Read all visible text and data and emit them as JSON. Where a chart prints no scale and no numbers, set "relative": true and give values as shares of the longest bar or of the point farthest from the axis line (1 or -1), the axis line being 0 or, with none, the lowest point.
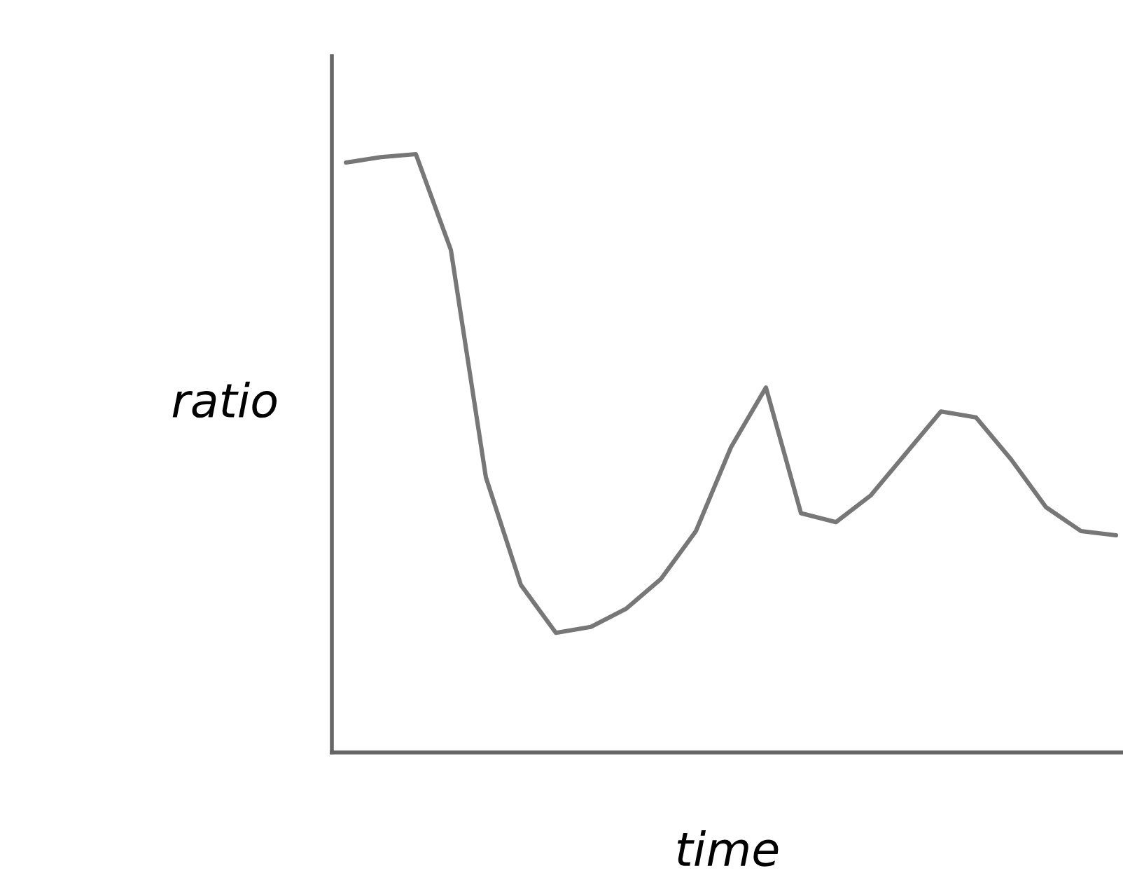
{
  "chart_data": {
    "type": "line",
    "relative": true,
    "xlabel": "time",
    "ylabel": "ratio",
    "categories": [
      null,
      null,
      null,
      null,
      null,
      null,
      null,
      null,
      null,
      null,
      null,
      null,
      null,
      null,
      null,
      null,
      null,
      null,
      null,
      null,
      null,
      null,
      null
    ],
    "series": [
      {
        "color": "#777777",
        "values": [
          0.986,
          0.995,
          1.0,
          0.84,
          0.46,
          0.28,
          0.2,
          0.21,
          0.24,
          0.29,
          0.37,
          0.51,
          0.61,
          0.4,
          0.385,
          0.43,
          0.5,
          0.57,
          0.56,
          0.49,
          0.41,
          0.37,
          0.363
        ]
      }
    ],
    "tick_labels": false,
    "grid": false,
    "legend": false,
    "marker": "none",
    "line_style": "solid"
  }
}
